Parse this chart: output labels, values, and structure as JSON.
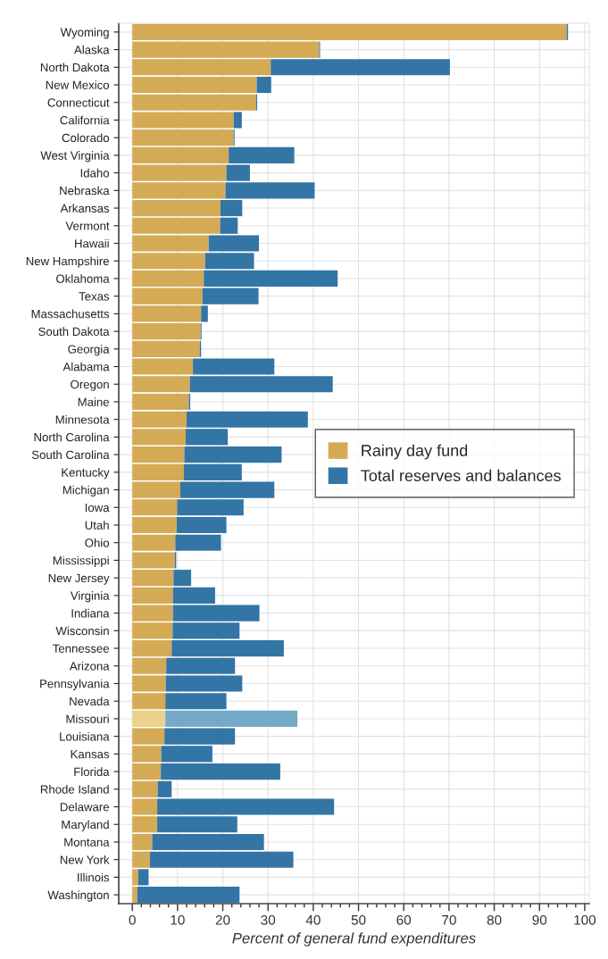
{
  "chart_data": {
    "type": "bar",
    "orientation": "horizontal",
    "stacked": true,
    "xlabel": "Percent of general fund expenditures",
    "categories": [
      "Wyoming",
      "Alaska",
      "North Dakota",
      "New Mexico",
      "Connecticut",
      "California",
      "Colorado",
      "West Virginia",
      "Idaho",
      "Nebraska",
      "Arkansas",
      "Vermont",
      "Hawaii",
      "New Hampshire",
      "Oklahoma",
      "Texas",
      "Massachusetts",
      "South Dakota",
      "Georgia",
      "Alabama",
      "Oregon",
      "Maine",
      "Minnesota",
      "North Carolina",
      "South Carolina",
      "Kentucky",
      "Michigan",
      "Iowa",
      "Utah",
      "Ohio",
      "Mississippi",
      "New Jersey",
      "Virginia",
      "Indiana",
      "Wisconsin",
      "Tennessee",
      "Arizona",
      "Pennsylvania",
      "Nevada",
      "Missouri",
      "Louisiana",
      "Kansas",
      "Florida",
      "Rhode Island",
      "Delaware",
      "Maryland",
      "Montana",
      "New York",
      "Illinois",
      "Washington"
    ],
    "series": [
      {
        "name": "Rainy day fund",
        "color": "#d4aa55",
        "colors": [
          "#d4aa55",
          "#d4aa55",
          "#d4aa55",
          "#d4aa55",
          "#d4aa55",
          "#d4aa55",
          "#d4aa55",
          "#d4aa55",
          "#d4aa55",
          "#d4aa55",
          "#d4aa55",
          "#d4aa55",
          "#d4aa55",
          "#d4aa55",
          "#d4aa55",
          "#d4aa55",
          "#d4aa55",
          "#d4aa55",
          "#d4aa55",
          "#d4aa55",
          "#d4aa55",
          "#d4aa55",
          "#d4aa55",
          "#d4aa55",
          "#d4aa55",
          "#d4aa55",
          "#d4aa55",
          "#d4aa55",
          "#d4aa55",
          "#d4aa55",
          "#d4aa55",
          "#d4aa55",
          "#d4aa55",
          "#d4aa55",
          "#d4aa55",
          "#d4aa55",
          "#d4aa55",
          "#d4aa55",
          "#d4aa55",
          "#ecd18b",
          "#d4aa55",
          "#d4aa55",
          "#d4aa55",
          "#d4aa55",
          "#d4aa55",
          "#d4aa55",
          "#d4aa55",
          "#d4aa55",
          "#d4aa55",
          "#d4aa55"
        ],
        "values": [
          96,
          41.3,
          30.6,
          27.5,
          27.4,
          22.4,
          22.4,
          21.3,
          20.8,
          20.6,
          19.5,
          19.4,
          16.9,
          16.1,
          15.8,
          15.5,
          15.2,
          15.1,
          14.9,
          13.4,
          12.7,
          12.5,
          12,
          11.8,
          11.5,
          11.4,
          10.6,
          9.9,
          9.8,
          9.5,
          9.4,
          9.1,
          9,
          9,
          8.9,
          8.7,
          7.5,
          7.4,
          7.3,
          7.3,
          7.1,
          6.4,
          6.3,
          5.6,
          5.5,
          5.5,
          4.4,
          3.9,
          1.3,
          1.1
        ]
      },
      {
        "name": "Total reserves and balances",
        "color": "#3375a5",
        "colors": [
          "#3375a5",
          "#3375a5",
          "#3375a5",
          "#3375a5",
          "#3375a5",
          "#3375a5",
          "#3375a5",
          "#3375a5",
          "#3375a5",
          "#3375a5",
          "#3375a5",
          "#3375a5",
          "#3375a5",
          "#3375a5",
          "#3375a5",
          "#3375a5",
          "#3375a5",
          "#3375a5",
          "#3375a5",
          "#3375a5",
          "#3375a5",
          "#3375a5",
          "#3375a5",
          "#3375a5",
          "#3375a5",
          "#3375a5",
          "#3375a5",
          "#3375a5",
          "#3375a5",
          "#3375a5",
          "#3375a5",
          "#3375a5",
          "#3375a5",
          "#3375a5",
          "#3375a5",
          "#3375a5",
          "#3375a5",
          "#3375a5",
          "#3375a5",
          "#74a9c9",
          "#3375a5",
          "#3375a5",
          "#3375a5",
          "#3375a5",
          "#3375a5",
          "#3375a5",
          "#3375a5",
          "#3375a5",
          "#3375a5",
          "#3375a5"
        ],
        "values": [
          0.3,
          0.2,
          39.6,
          3.2,
          0.2,
          1.8,
          0.2,
          14.5,
          5.2,
          19.7,
          4.8,
          3.9,
          11.1,
          10.8,
          29.6,
          12.4,
          1.5,
          0.2,
          0.3,
          18,
          31.6,
          0.3,
          26.8,
          9.3,
          21.5,
          12.8,
          20.8,
          14.7,
          11,
          10.1,
          0.3,
          3.9,
          9.3,
          19.1,
          14.8,
          24.8,
          15.2,
          16.9,
          13.5,
          29.2,
          15.6,
          11.3,
          26.4,
          3.1,
          39.1,
          17.7,
          24.7,
          31.7,
          2.3,
          22.6
        ]
      }
    ],
    "xlim": [
      -3,
      101
    ],
    "xticks": [
      0,
      10,
      20,
      30,
      40,
      50,
      60,
      70,
      80,
      90,
      100,
      {
        "value": 2,
        "label": null
      },
      {
        "value": 4,
        "label": null
      },
      {
        "value": 6,
        "label": null
      },
      {
        "value": 8,
        "label": null
      },
      {
        "value": 12,
        "label": null
      },
      {
        "value": 14,
        "label": null
      },
      {
        "value": 16,
        "label": null
      },
      {
        "value": 18,
        "label": null
      },
      {
        "value": 22,
        "label": null
      },
      {
        "value": 24,
        "label": null
      },
      {
        "value": 26,
        "label": null
      },
      {
        "value": 28,
        "label": null
      },
      {
        "value": 32,
        "label": null
      },
      {
        "value": 34,
        "label": null
      },
      {
        "value": 36,
        "label": null
      },
      {
        "value": 38,
        "label": null
      },
      {
        "value": 42,
        "label": null
      },
      {
        "value": 44,
        "label": null
      },
      {
        "value": 46,
        "label": null
      },
      {
        "value": 48,
        "label": null
      },
      {
        "value": 52,
        "label": null
      },
      {
        "value": 54,
        "label": null
      },
      {
        "value": 56,
        "label": null
      },
      {
        "value": 58,
        "label": null
      },
      {
        "value": 62,
        "label": null
      },
      {
        "value": 64,
        "label": null
      },
      {
        "value": 66,
        "label": null
      },
      {
        "value": 68,
        "label": null
      },
      {
        "value": 72,
        "label": null
      },
      {
        "value": 74,
        "label": null
      },
      {
        "value": 76,
        "label": null
      },
      {
        "value": 78,
        "label": null
      },
      {
        "value": 82,
        "label": null
      },
      {
        "value": 84,
        "label": null
      },
      {
        "value": 86,
        "label": null
      },
      {
        "value": 88,
        "label": null
      },
      {
        "value": 92,
        "label": null
      },
      {
        "value": 94,
        "label": null
      },
      {
        "value": 96,
        "label": null
      },
      {
        "value": 98,
        "label": null
      }
    ],
    "grid": true,
    "legend": "right"
  }
}
